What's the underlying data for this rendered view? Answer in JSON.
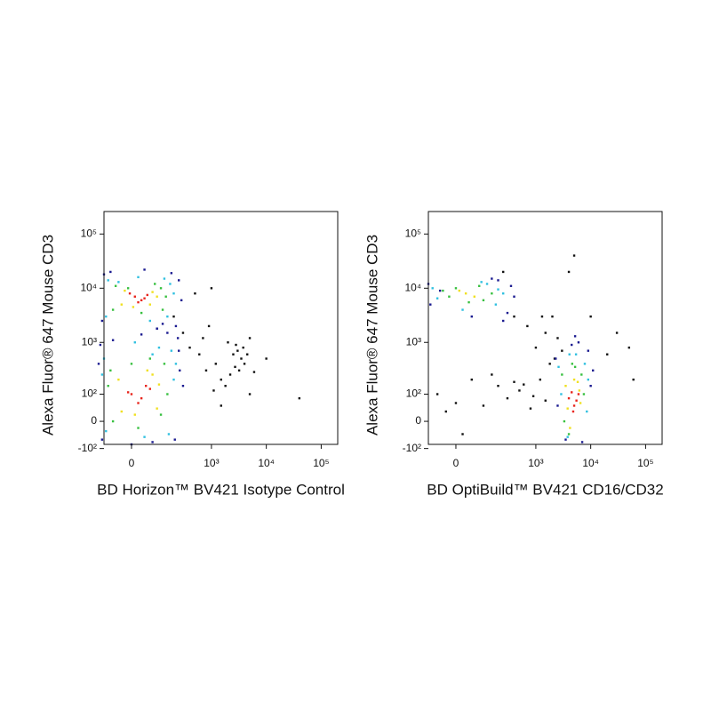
{
  "chart_data": [
    {
      "type": "scatter",
      "xlabel": "BD Horizon™ BV421 Isotype Control",
      "ylabel": "Alexa Fluor® 647 Mouse CD3",
      "xscale": "biexponential",
      "yscale": "biexponential",
      "xlim": [
        -100,
        200000
      ],
      "ylim": [
        -80,
        260000
      ],
      "xticks": [
        0,
        {
          "value": 1000,
          "label": "10³"
        },
        {
          "value": 10000,
          "label": "10⁴"
        },
        {
          "value": 100000,
          "label": "10⁵"
        }
      ],
      "yticks": [
        {
          "value": 100000,
          "label": "10⁵"
        },
        {
          "value": 10000,
          "label": "10⁴"
        },
        {
          "value": 1000,
          "label": "10³"
        },
        {
          "value": 100,
          "label": "10²"
        },
        0,
        {
          "value": -100,
          "label": "-10²"
        }
      ],
      "series": [
        {
          "color": "#111111",
          "x": [
            400,
            600,
            800,
            1200,
            1500,
            2000,
            2500,
            3000,
            3500,
            4000,
            2800,
            3200,
            1800,
            700,
            500,
            1000,
            5000,
            2200,
            4500,
            40000,
            10000,
            1500,
            2700,
            6000,
            3800,
            900,
            200,
            300,
            1100,
            5000
          ],
          "y": [
            800,
            600,
            300,
            400,
            200,
            1000,
            600,
            700,
            500,
            400,
            900,
            300,
            150,
            1200,
            8000,
            10000,
            1200,
            250,
            600,
            80,
            500,
            50,
            350,
            280,
            800,
            2000,
            3000,
            1500,
            120,
            100
          ]
        },
        {
          "color": "#1a1a90",
          "x": [
            -100,
            250,
            220,
            -110,
            90,
            180,
            -70,
            280,
            40,
            120,
            -120,
            260,
            240,
            -110,
            70,
            210,
            -130,
            150,
            300,
            30,
            90,
            250,
            -60,
            0
          ],
          "y": [
            18000,
            14000,
            2000,
            2500,
            1800,
            19000,
            20000,
            6000,
            22000,
            2200,
            900,
            300,
            1200,
            -60,
            -70,
            -60,
            400,
            1500,
            150,
            1400,
            1800,
            700,
            1100,
            -80
          ]
        },
        {
          "color": "#30c0e0",
          "x": [
            -80,
            170,
            150,
            -90,
            60,
            130,
            -40,
            200,
            20,
            -100,
            200,
            180,
            -90,
            40,
            160,
            -110,
            100,
            220,
            10,
            70
          ],
          "y": [
            14000,
            12000,
            3000,
            3000,
            2500,
            15000,
            13000,
            8000,
            16000,
            500,
            200,
            700,
            -30,
            -50,
            -40,
            250,
            800,
            400,
            1000,
            600
          ]
        },
        {
          "color": "#38c040",
          "x": [
            -50,
            110,
            120,
            -60,
            30,
            80,
            -10,
            140,
            -70,
            150,
            130,
            -60,
            20,
            110,
            -80,
            60,
            0
          ],
          "y": [
            11000,
            10000,
            4000,
            4000,
            3500,
            12000,
            10000,
            7000,
            300,
            100,
            400,
            0,
            -20,
            20,
            150,
            500,
            400
          ]
        },
        {
          "color": "#f0e020",
          "x": [
            -20,
            70,
            60,
            -30,
            90,
            5,
            -40,
            90,
            70,
            -30,
            100,
            10,
            50
          ],
          "y": [
            9000,
            8500,
            5000,
            5000,
            7000,
            4500,
            200,
            40,
            250,
            30,
            160,
            20,
            300
          ]
        },
        {
          "color": "#e8251c",
          "x": [
            10,
            30,
            -5,
            40,
            20,
            50,
            0,
            30,
            60,
            20,
            -10,
            45
          ],
          "y": [
            7000,
            6000,
            8000,
            6500,
            5500,
            7500,
            100,
            80,
            130,
            60,
            110,
            150
          ]
        }
      ]
    },
    {
      "type": "scatter",
      "xlabel": "BD OptiBuild™ BV421 CD16/CD32",
      "ylabel": "Alexa Fluor® 647 Mouse CD3",
      "xscale": "biexponential",
      "yscale": "biexponential",
      "xlim": [
        -100,
        200000
      ],
      "ylim": [
        -80,
        260000
      ],
      "xticks": [
        0,
        {
          "value": 1000,
          "label": "10³"
        },
        {
          "value": 10000,
          "label": "10⁴"
        },
        {
          "value": 100000,
          "label": "10⁵"
        }
      ],
      "yticks": [
        {
          "value": 100000,
          "label": "10⁵"
        },
        {
          "value": 10000,
          "label": "10⁴"
        },
        {
          "value": 1000,
          "label": "10³"
        },
        {
          "value": 100,
          "label": "10²"
        },
        0,
        {
          "value": -100,
          "label": "-10²"
        }
      ],
      "series": [
        {
          "color": "#111111",
          "x": [
            -60,
            0,
            50,
            100,
            200,
            300,
            500,
            800,
            1200,
            1500,
            -30,
            150,
            600,
            900,
            20,
            400,
            1000,
            1500,
            2000,
            3000,
            1800,
            700,
            2500,
            10000,
            20000,
            50000,
            30000,
            60000,
            5000,
            4000,
            1300,
            2200,
            400,
            250
          ],
          "y": [
            100,
            60,
            200,
            50,
            150,
            80,
            120,
            40,
            200,
            70,
            30,
            250,
            160,
            90,
            -40,
            180,
            800,
            1500,
            3000,
            700,
            400,
            2000,
            1200,
            3000,
            600,
            800,
            1500,
            200,
            40000,
            20000,
            3000,
            500,
            3000,
            20000
          ]
        },
        {
          "color": "#1a1a90",
          "x": [
            2300,
            10000,
            3500,
            9000,
            6000,
            4500,
            11000,
            2500,
            7000,
            5200,
            -100,
            300,
            350,
            -90,
            200,
            400,
            50,
            150,
            -50,
            250
          ],
          "y": [
            500,
            150,
            -60,
            700,
            1000,
            900,
            300,
            50,
            -70,
            1300,
            12000,
            3500,
            11000,
            5000,
            14000,
            7000,
            3000,
            15000,
            9000,
            2500
          ]
        },
        {
          "color": "#30c0e0",
          "x": [
            2600,
            8500,
            3800,
            7800,
            5400,
            4100,
            9000,
            2900,
            -80,
            180,
            200,
            -60,
            120,
            250,
            20,
            90
          ],
          "y": [
            350,
            30,
            -50,
            400,
            600,
            600,
            200,
            100,
            10000,
            5000,
            9500,
            6500,
            12000,
            8000,
            4000,
            13000
          ]
        },
        {
          "color": "#38c040",
          "x": [
            3000,
            7500,
            4000,
            6800,
            5200,
            3300,
            4600,
            -40,
            100,
            80,
            -20,
            150,
            40,
            0
          ],
          "y": [
            250,
            100,
            -40,
            250,
            350,
            0,
            400,
            9000,
            6000,
            11000,
            7000,
            8000,
            5500,
            10000
          ]
        },
        {
          "color": "#f0e020",
          "x": [
            3500,
            6500,
            5000,
            4200,
            5800,
            3800,
            6200,
            30,
            60,
            10
          ],
          "y": [
            150,
            60,
            200,
            -20,
            180,
            40,
            120,
            8000,
            7000,
            9000
          ]
        },
        {
          "color": "#e8251c",
          "x": [
            4000,
            5000,
            4500,
            5500,
            6000,
            4800
          ],
          "y": [
            80,
            50,
            110,
            70,
            100,
            30
          ]
        }
      ]
    }
  ]
}
